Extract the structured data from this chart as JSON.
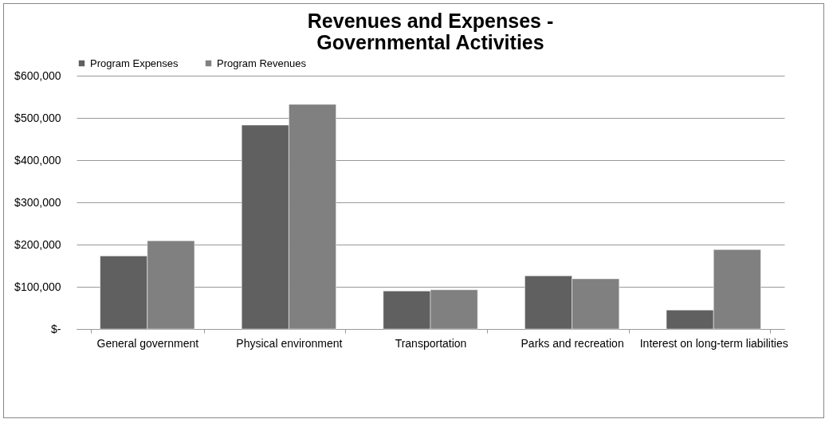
{
  "chart_data": {
    "type": "bar",
    "title": "Revenues and Expenses - Governmental Activities",
    "categories": [
      "General government",
      "Physical environment",
      "Transportation",
      "Parks and recreation",
      "Interest on long-term liabilities"
    ],
    "series": [
      {
        "name": "Program Expenses",
        "color": "#606060",
        "values": [
          173000,
          483000,
          90000,
          126000,
          45000
        ]
      },
      {
        "name": "Program Revenues",
        "color": "#808080",
        "values": [
          209000,
          532000,
          93000,
          119000,
          188000
        ]
      }
    ],
    "ylim": [
      0,
      600000
    ],
    "yticks": [
      {
        "value": 0,
        "label": "$-"
      },
      {
        "value": 100000,
        "label": "$100,000"
      },
      {
        "value": 200000,
        "label": "$200,000"
      },
      {
        "value": 300000,
        "label": "$300,000"
      },
      {
        "value": 400000,
        "label": "$400,000"
      },
      {
        "value": 500000,
        "label": "$500,000"
      },
      {
        "value": 600000,
        "label": "$600,000"
      }
    ],
    "grid": "y",
    "legend": "top"
  }
}
